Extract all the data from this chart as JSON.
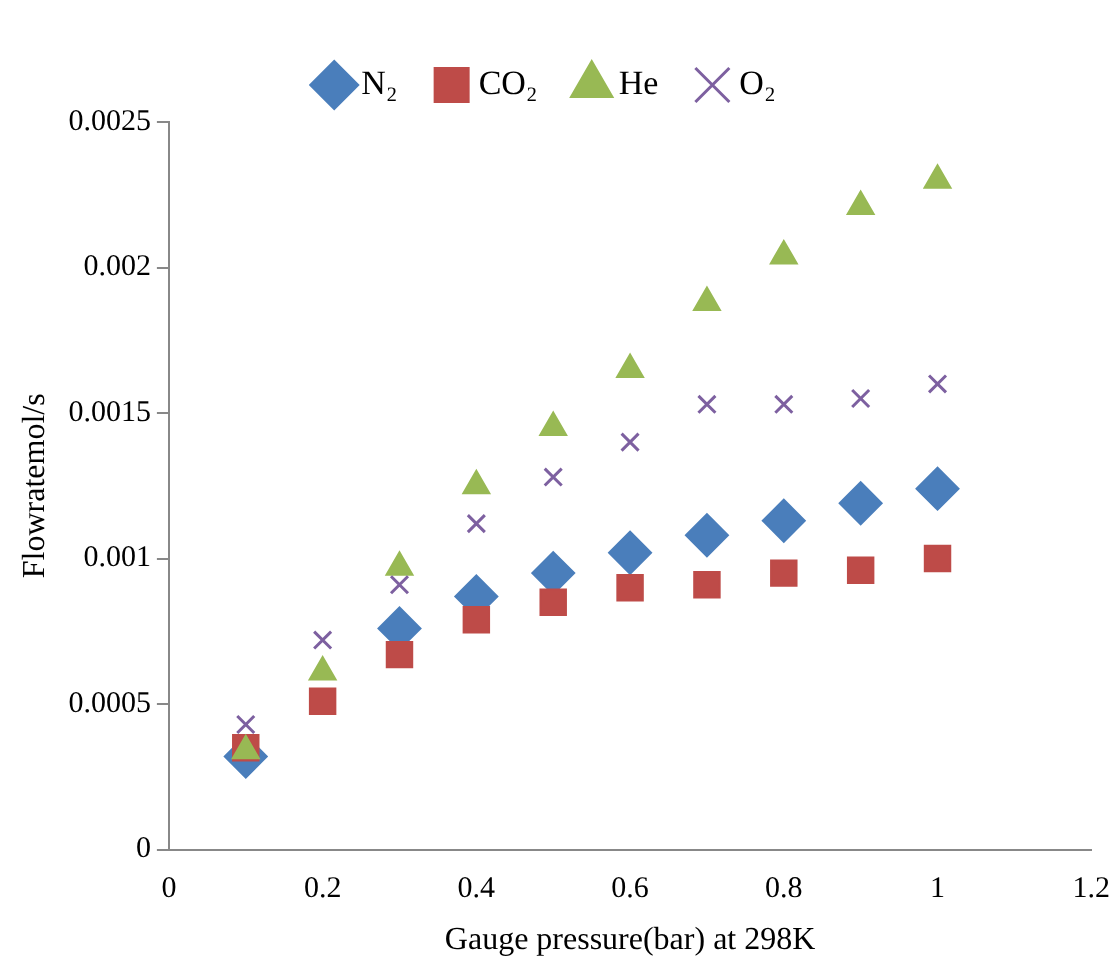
{
  "chart_data": {
    "type": "scatter",
    "xlabel": "Gauge pressure(bar) at 298K",
    "ylabel": "Flowratemol/s",
    "x": [
      0.1,
      0.2,
      0.3,
      0.4,
      0.5,
      0.6,
      0.7,
      0.8,
      0.9,
      1.0
    ],
    "series": [
      {
        "name": "N₂",
        "color": "#4a7ebb",
        "marker": "diamond",
        "values": [
          0.00032,
          null,
          0.00076,
          0.00087,
          0.00095,
          0.00102,
          0.00108,
          0.00113,
          0.00119,
          0.00124
        ]
      },
      {
        "name": "CO₂",
        "color": "#be4b48",
        "marker": "square",
        "values": [
          0.00035,
          0.00051,
          0.00067,
          0.00079,
          0.00085,
          0.0009,
          0.00091,
          0.00095,
          0.00096,
          0.001
        ]
      },
      {
        "name": "He",
        "color": "#98b954",
        "marker": "triangle",
        "values": [
          0.00034,
          0.00061,
          0.00097,
          0.00125,
          0.00145,
          0.00165,
          0.00188,
          0.00204,
          0.00221,
          0.0023
        ]
      },
      {
        "name": "O₂",
        "color": "#7d60a0",
        "marker": "cross",
        "values": [
          0.00043,
          0.00072,
          0.00091,
          0.00112,
          0.00128,
          0.0014,
          0.00153,
          0.00153,
          0.00155,
          0.0016
        ]
      }
    ],
    "xlim": [
      0,
      1.2
    ],
    "xticks": [
      0,
      0.2,
      0.4,
      0.6,
      0.8,
      1,
      1.2
    ],
    "ylim": [
      0,
      0.0025
    ],
    "yticks": [
      0,
      0.0005,
      0.001,
      0.0015,
      0.002,
      0.0025
    ],
    "grid": false,
    "legend": "top"
  }
}
